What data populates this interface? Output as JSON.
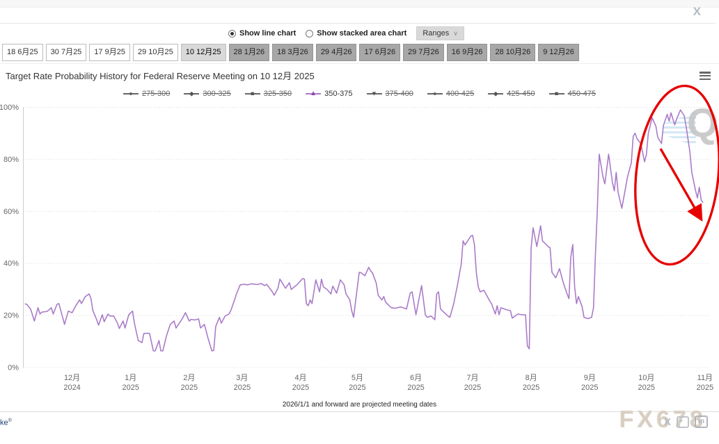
{
  "page": {
    "close_label": "X",
    "watermark_logo": "FX678",
    "logo_partial": "ke",
    "logo_partial_reg": "®"
  },
  "controls": {
    "radio_line_label": "Show line chart",
    "radio_area_label": "Show stacked area chart",
    "selected_radio": "line",
    "ranges_label": "Ranges",
    "ranges_chevron": "∨"
  },
  "tabs": [
    {
      "label": "18 6月25",
      "state": "past"
    },
    {
      "label": "30 7月25",
      "state": "past"
    },
    {
      "label": "17 9月25",
      "state": "past"
    },
    {
      "label": "29 10月25",
      "state": "past"
    },
    {
      "label": "10 12月25",
      "state": "selected"
    },
    {
      "label": "28 1月26",
      "state": "future"
    },
    {
      "label": "18 3月26",
      "state": "future"
    },
    {
      "label": "29 4月26",
      "state": "future"
    },
    {
      "label": "17 6月26",
      "state": "future"
    },
    {
      "label": "29 7月26",
      "state": "future"
    },
    {
      "label": "16 9月26",
      "state": "future"
    },
    {
      "label": "28 10月26",
      "state": "future"
    },
    {
      "label": "9 12月26",
      "state": "future"
    }
  ],
  "chart_data": {
    "type": "line",
    "title": "Target Rate Probability History for Federal Reserve Meeting on 10 12月 2025",
    "footnote": "2026/1/1 and forward are projected meeting dates",
    "legend": [
      {
        "label": "275-300",
        "marker": "circle",
        "active": false
      },
      {
        "label": "300-325",
        "marker": "diamond",
        "active": false
      },
      {
        "label": "325-350",
        "marker": "square",
        "active": false
      },
      {
        "label": "350-375",
        "marker": "triangle",
        "active": true
      },
      {
        "label": "375-400",
        "marker": "triangle-down",
        "active": false
      },
      {
        "label": "400-425",
        "marker": "circle",
        "active": false
      },
      {
        "label": "425-450",
        "marker": "diamond",
        "active": false
      },
      {
        "label": "450-475",
        "marker": "square",
        "active": false
      }
    ],
    "legend_position": "top-center",
    "grid": "dotted-horizontal",
    "y_axis": {
      "min": 0,
      "max": 100,
      "tick_step": 20,
      "unit": "%"
    },
    "x_axis": {
      "unit": "days since 2024-11-06",
      "range": [
        -1,
        363
      ],
      "ticks": [
        {
          "day": 25,
          "month": "12月",
          "year": "2024"
        },
        {
          "day": 56,
          "month": "1月",
          "year": "2025"
        },
        {
          "day": 87,
          "month": "2月",
          "year": "2025"
        },
        {
          "day": 115,
          "month": "3月",
          "year": "2025"
        },
        {
          "day": 146,
          "month": "4月",
          "year": "2025"
        },
        {
          "day": 176,
          "month": "5月",
          "year": "2025"
        },
        {
          "day": 207,
          "month": "6月",
          "year": "2025"
        },
        {
          "day": 237,
          "month": "7月",
          "year": "2025"
        },
        {
          "day": 268,
          "month": "8月",
          "year": "2025"
        },
        {
          "day": 299,
          "month": "9月",
          "year": "2025"
        },
        {
          "day": 329,
          "month": "10月",
          "year": "2025"
        },
        {
          "day": 360,
          "month": "11月",
          "year": "2025"
        }
      ]
    },
    "series": [
      {
        "name": "350-375",
        "color": "#a97bc9",
        "marker_color": "#8e44ad",
        "points": [
          [
            0,
            24.5
          ],
          [
            1,
            24.3
          ],
          [
            3,
            22.5
          ],
          [
            4,
            20.3
          ],
          [
            5,
            17.9
          ],
          [
            7,
            23
          ],
          [
            8,
            20.6
          ],
          [
            9,
            21.3
          ],
          [
            11,
            21.5
          ],
          [
            12,
            21.7
          ],
          [
            14,
            23
          ],
          [
            15,
            20.6
          ],
          [
            17,
            24.3
          ],
          [
            18,
            24.6
          ],
          [
            20,
            19.3
          ],
          [
            21,
            16.6
          ],
          [
            23,
            21.7
          ],
          [
            25,
            21.1
          ],
          [
            27,
            23.8
          ],
          [
            29,
            26
          ],
          [
            30,
            24.6
          ],
          [
            32,
            27.3
          ],
          [
            34,
            28.3
          ],
          [
            35,
            26.5
          ],
          [
            36,
            21.9
          ],
          [
            38,
            18.4
          ],
          [
            39,
            16.3
          ],
          [
            41,
            20.3
          ],
          [
            42,
            17.6
          ],
          [
            44,
            20.6
          ],
          [
            45,
            19.8
          ],
          [
            47,
            19.8
          ],
          [
            49,
            17.1
          ],
          [
            50,
            15
          ],
          [
            52,
            17.9
          ],
          [
            53,
            15.2
          ],
          [
            55,
            20.3
          ],
          [
            57,
            21.7
          ],
          [
            58,
            17.1
          ],
          [
            60,
            10.4
          ],
          [
            62,
            9.6
          ],
          [
            63,
            13.1
          ],
          [
            65,
            13.2
          ],
          [
            66,
            13.1
          ],
          [
            68,
            6.4
          ],
          [
            69,
            6.4
          ],
          [
            71,
            10.4
          ],
          [
            72,
            6.4
          ],
          [
            73,
            6.4
          ],
          [
            75,
            12.3
          ],
          [
            77,
            16.6
          ],
          [
            79,
            17.9
          ],
          [
            80,
            15.2
          ],
          [
            83,
            18.4
          ],
          [
            85,
            21.1
          ],
          [
            87,
            17.9
          ],
          [
            88,
            18.5
          ],
          [
            90,
            18.3
          ],
          [
            92,
            18.7
          ],
          [
            93,
            15.2
          ],
          [
            95,
            16.6
          ],
          [
            97,
            11.2
          ],
          [
            99,
            6.4
          ],
          [
            100,
            6.6
          ],
          [
            101,
            15.8
          ],
          [
            103,
            19.3
          ],
          [
            104,
            17.1
          ],
          [
            106,
            19.8
          ],
          [
            108,
            20.6
          ],
          [
            109,
            21.9
          ],
          [
            111,
            26
          ],
          [
            112,
            28.3
          ],
          [
            114,
            31.8
          ],
          [
            116,
            32
          ],
          [
            118,
            31.8
          ],
          [
            120,
            32.2
          ],
          [
            123,
            31.9
          ],
          [
            125,
            32.3
          ],
          [
            127,
            31.5
          ],
          [
            128,
            32
          ],
          [
            131,
            29.1
          ],
          [
            132,
            27.8
          ],
          [
            134,
            30.5
          ],
          [
            135,
            34
          ],
          [
            138,
            30.5
          ],
          [
            140,
            32.6
          ],
          [
            141,
            30
          ],
          [
            144,
            31.8
          ],
          [
            147,
            34.2
          ],
          [
            148,
            34
          ],
          [
            149,
            24.6
          ],
          [
            150,
            23.8
          ],
          [
            151,
            26
          ],
          [
            152,
            24.6
          ],
          [
            154,
            33.7
          ],
          [
            156,
            29.1
          ],
          [
            157,
            34
          ],
          [
            158,
            31
          ],
          [
            160,
            30
          ],
          [
            162,
            28.3
          ],
          [
            163,
            31.3
          ],
          [
            165,
            28.6
          ],
          [
            167,
            33.7
          ],
          [
            169,
            31.8
          ],
          [
            170,
            28.3
          ],
          [
            172,
            26
          ],
          [
            173,
            21.9
          ],
          [
            174,
            19.3
          ],
          [
            175,
            25.1
          ],
          [
            177,
            36.6
          ],
          [
            178,
            36.4
          ],
          [
            180,
            35.3
          ],
          [
            182,
            38.5
          ],
          [
            183,
            37.2
          ],
          [
            184,
            36.4
          ],
          [
            186,
            32.4
          ],
          [
            187,
            27.8
          ],
          [
            189,
            26
          ],
          [
            190,
            27.3
          ],
          [
            191,
            25.1
          ],
          [
            194,
            23
          ],
          [
            196,
            22.8
          ],
          [
            199,
            23.3
          ],
          [
            202,
            22.5
          ],
          [
            204,
            28.6
          ],
          [
            205,
            29.1
          ],
          [
            207,
            20.3
          ],
          [
            210,
            31.5
          ],
          [
            212,
            20.3
          ],
          [
            213,
            19.3
          ],
          [
            215,
            19.8
          ],
          [
            217,
            18.4
          ],
          [
            218,
            28.3
          ],
          [
            219,
            29.1
          ],
          [
            220,
            22.5
          ],
          [
            222,
            21.1
          ],
          [
            224,
            19.8
          ],
          [
            225,
            19.3
          ],
          [
            227,
            24.6
          ],
          [
            229,
            31.8
          ],
          [
            231,
            39.8
          ],
          [
            232,
            48.7
          ],
          [
            233,
            47.1
          ],
          [
            236,
            50.5
          ],
          [
            237,
            50.8
          ],
          [
            238,
            47.1
          ],
          [
            239,
            36.4
          ],
          [
            240,
            31
          ],
          [
            241,
            29.1
          ],
          [
            243,
            29.7
          ],
          [
            246,
            25.7
          ],
          [
            247,
            24.6
          ],
          [
            249,
            20.6
          ],
          [
            250,
            23.8
          ],
          [
            251,
            20.3
          ],
          [
            252,
            23
          ],
          [
            255,
            22.2
          ],
          [
            257,
            21.9
          ],
          [
            258,
            19
          ],
          [
            261,
            20.6
          ],
          [
            263,
            20.3
          ],
          [
            265,
            20.3
          ],
          [
            266,
            8.3
          ],
          [
            267,
            7.2
          ],
          [
            268,
            46
          ],
          [
            269,
            53.7
          ],
          [
            271,
            46.5
          ],
          [
            273,
            54.5
          ],
          [
            274,
            48.7
          ],
          [
            277,
            46.5
          ],
          [
            278,
            46
          ],
          [
            279,
            36.6
          ],
          [
            281,
            34.5
          ],
          [
            283,
            38
          ],
          [
            285,
            32.6
          ],
          [
            287,
            28.3
          ],
          [
            288,
            26.5
          ],
          [
            289,
            42.5
          ],
          [
            290,
            47.3
          ],
          [
            291,
            31
          ],
          [
            292,
            24.6
          ],
          [
            293,
            27.3
          ],
          [
            295,
            23.3
          ],
          [
            296,
            19.3
          ],
          [
            298,
            18.8
          ],
          [
            300,
            19.3
          ],
          [
            301,
            23
          ],
          [
            302,
            43
          ],
          [
            303,
            60
          ],
          [
            304,
            82
          ],
          [
            306,
            73.3
          ],
          [
            307,
            70.6
          ],
          [
            309,
            82
          ],
          [
            310,
            76.7
          ],
          [
            311,
            71.1
          ],
          [
            312,
            67.9
          ],
          [
            313,
            75
          ],
          [
            314,
            67.4
          ],
          [
            316,
            61.2
          ],
          [
            317,
            65.2
          ],
          [
            319,
            73.3
          ],
          [
            321,
            78.6
          ],
          [
            322,
            88.8
          ],
          [
            323,
            90.1
          ],
          [
            324,
            88
          ],
          [
            326,
            86
          ],
          [
            327,
            82.6
          ],
          [
            328,
            79.1
          ],
          [
            329,
            81.8
          ],
          [
            330,
            90
          ],
          [
            332,
            96
          ],
          [
            334,
            92.8
          ],
          [
            335,
            88.5
          ],
          [
            337,
            86.1
          ],
          [
            338,
            93
          ],
          [
            340,
            97.3
          ],
          [
            341,
            94.7
          ],
          [
            342,
            97.9
          ],
          [
            344,
            93.3
          ],
          [
            345,
            95.5
          ],
          [
            347,
            99
          ],
          [
            349,
            96.8
          ],
          [
            350,
            92.8
          ],
          [
            352,
            83
          ],
          [
            353,
            75
          ],
          [
            355,
            68
          ],
          [
            356,
            65.2
          ],
          [
            357,
            69.3
          ],
          [
            358,
            64.4
          ],
          [
            359,
            63.4
          ]
        ]
      }
    ],
    "annotation": {
      "shapes": [
        "ellipse",
        "arrow-down-right"
      ],
      "color": "#e60000",
      "meaning": "highlights the sharp drop in probability at the latest dates"
    }
  }
}
